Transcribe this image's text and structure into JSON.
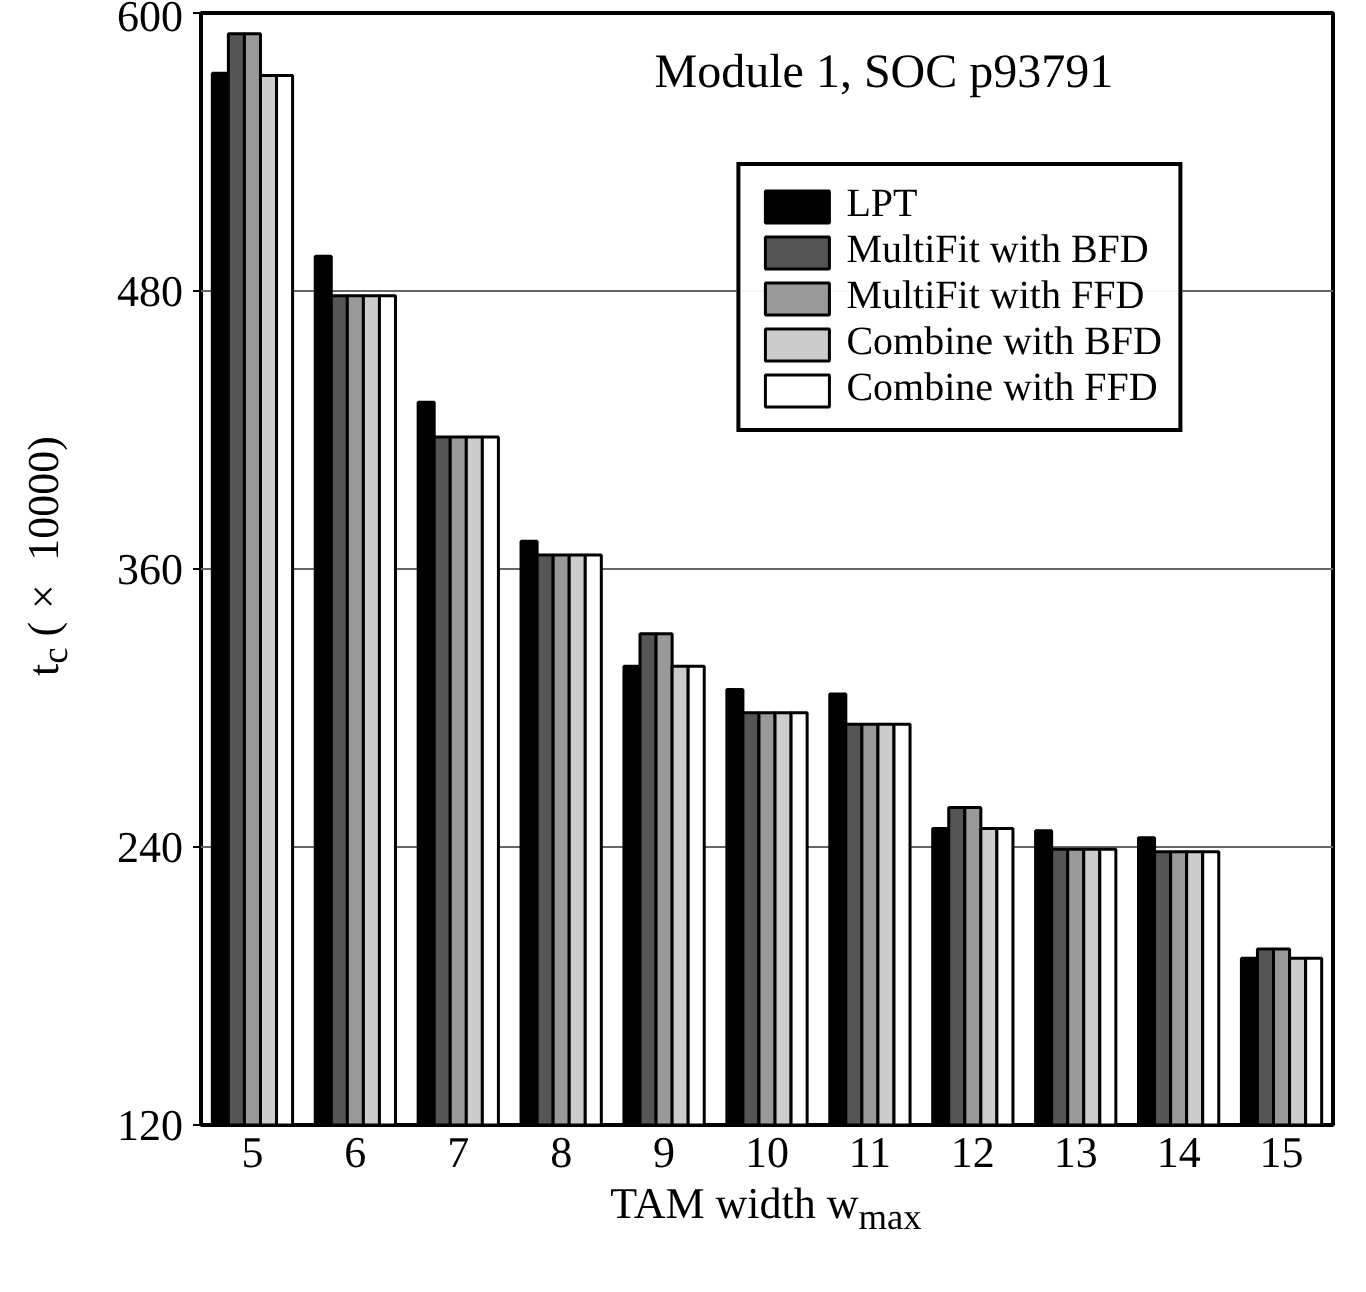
{
  "chart_data": {
    "type": "bar",
    "title": "Module 1, SOC p93791",
    "xlabel": "TAM width w$_{max}$",
    "ylabel": "t$_{c}$ (× 10000)",
    "categories": [
      "5",
      "6",
      "7",
      "8",
      "9",
      "10",
      "11",
      "12",
      "13",
      "14",
      "15"
    ],
    "series": [
      {
        "name": "LPT",
        "color": "#000000",
        "values": [
          574,
          495,
          432,
          372,
          318,
          308,
          306,
          248,
          247,
          244,
          192
        ]
      },
      {
        "name": "MultiFit with BFD",
        "color": "#555555",
        "values": [
          591,
          478,
          417,
          366,
          332,
          298,
          293,
          257,
          239,
          238,
          196
        ]
      },
      {
        "name": "MultiFit with FFD",
        "color": "#999999",
        "values": [
          591,
          478,
          417,
          366,
          332,
          298,
          293,
          257,
          239,
          238,
          196
        ]
      },
      {
        "name": "Combine with BFD",
        "color": "#cccccc",
        "values": [
          573,
          478,
          417,
          366,
          318,
          298,
          293,
          248,
          239,
          238,
          192
        ]
      },
      {
        "name": "Combine with FFD",
        "color": "#ffffff",
        "values": [
          573,
          478,
          417,
          366,
          318,
          298,
          293,
          248,
          239,
          238,
          192
        ]
      }
    ],
    "ylim": [
      120,
      600
    ],
    "yticks": [
      120,
      240,
      360,
      480,
      600
    ],
    "grid": "y",
    "legend": "top right"
  }
}
